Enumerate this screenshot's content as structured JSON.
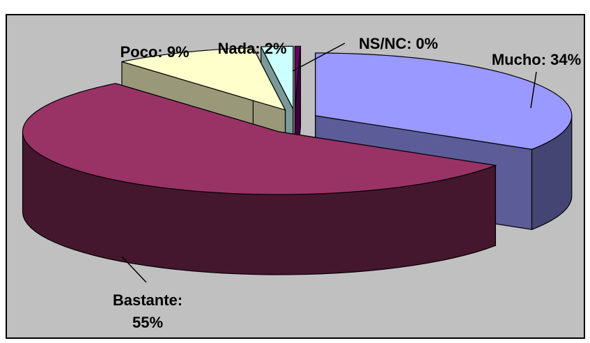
{
  "chart_data": {
    "type": "pie",
    "style": "3d-exploded",
    "title": "",
    "slices": [
      {
        "name": "Mucho",
        "value": 34,
        "color": "#9999ff",
        "label": [
          "Mucho: 34%"
        ]
      },
      {
        "name": "Bastante",
        "value": 55,
        "color": "#993366",
        "label": [
          "Bastante:",
          "55%"
        ]
      },
      {
        "name": "Poco",
        "value": 9,
        "color": "#ffffcc",
        "label": [
          "Poco: 9%"
        ]
      },
      {
        "name": "Nada",
        "value": 2,
        "color": "#ccffff",
        "label": [
          "Nada: 2%"
        ]
      },
      {
        "name": "NS/NC",
        "value": 0,
        "color": "#660066",
        "label": [
          "NS/NC: 0%"
        ]
      }
    ],
    "plot_background": "#c0c0c0",
    "border_color": "#000000"
  }
}
